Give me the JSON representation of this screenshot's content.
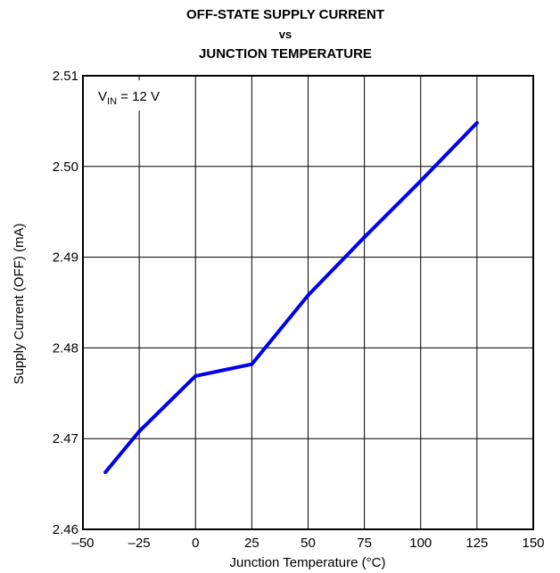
{
  "chart_data": {
    "type": "line",
    "title_lines": [
      "OFF-STATE SUPPLY CURRENT",
      "vs",
      "JUNCTION TEMPERATURE"
    ],
    "xlabel": "Junction Temperature (°C)",
    "ylabel": "Supply Current (OFF) (mA)",
    "xlim": [
      -50,
      150
    ],
    "ylim": [
      2.46,
      2.51
    ],
    "xticks": [
      -50,
      -25,
      0,
      25,
      50,
      75,
      100,
      125,
      150
    ],
    "xtick_labels": [
      "–50",
      "–25",
      "0",
      "25",
      "50",
      "75",
      "100",
      "125",
      "150"
    ],
    "yticks": [
      2.46,
      2.47,
      2.48,
      2.49,
      2.5,
      2.51
    ],
    "ytick_labels": [
      "2.46",
      "2.47",
      "2.48",
      "2.49",
      "2.50",
      "2.51"
    ],
    "grid": true,
    "annotation": {
      "base": "V",
      "subscript": "IN",
      "rest": " = 12 V"
    },
    "series": [
      {
        "color": "#0000ee",
        "x": [
          -40,
          -25,
          0,
          25,
          50,
          75,
          100,
          125
        ],
        "y": [
          2.4663,
          2.4708,
          2.4769,
          2.4782,
          2.4858,
          2.4922,
          2.4984,
          2.5048
        ]
      }
    ]
  }
}
